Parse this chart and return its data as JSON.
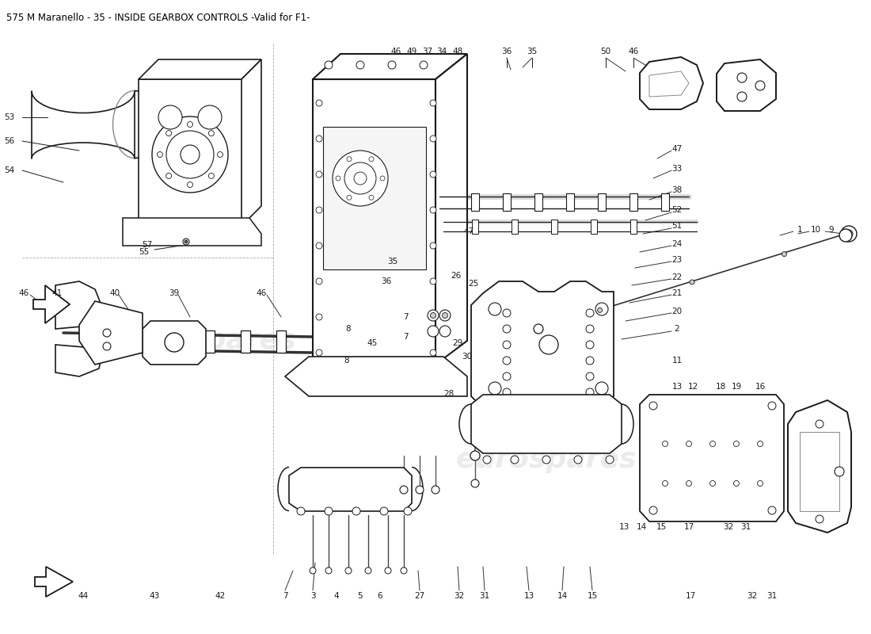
{
  "title": "575 M Maranello - 35 - INSIDE GEARBOX CONTROLS -Valid for F1-",
  "title_fontsize": 8.5,
  "title_color": "#000000",
  "background_color": "#ffffff",
  "watermark_text1": "eurospares",
  "watermark_text2": "eurospares",
  "watermark_color": "#c8c8c8",
  "watermark_alpha": 0.35,
  "fig_width": 11.0,
  "fig_height": 8.0,
  "dpi": 100,
  "line_color": "#1a1a1a",
  "lw_main": 1.4,
  "lw_thin": 0.7,
  "lw_leader": 0.7,
  "label_fs": 7.5
}
